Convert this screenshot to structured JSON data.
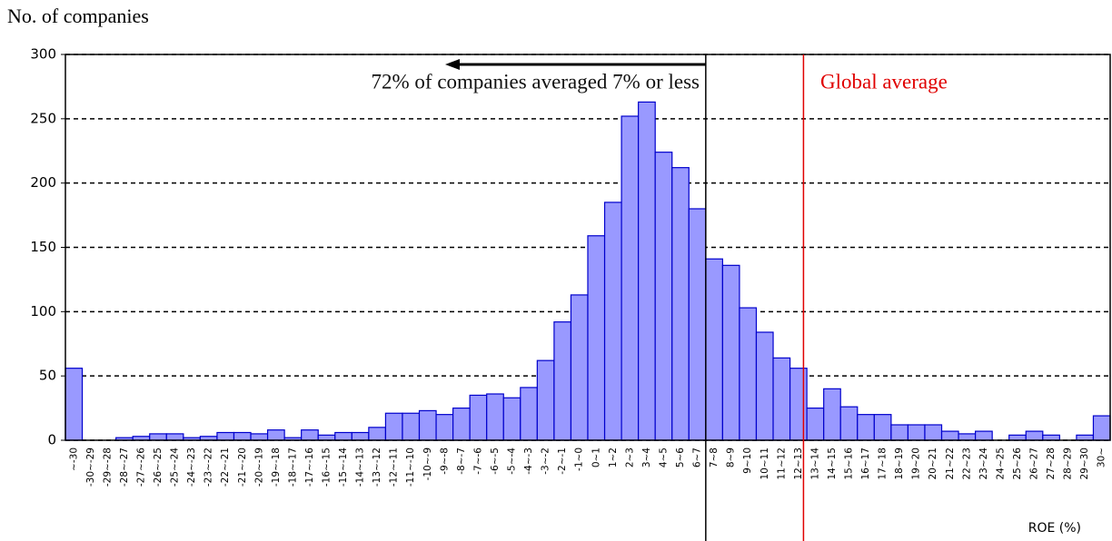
{
  "chart_data": {
    "type": "bar",
    "y_label": "No. of companies",
    "x_label": "ROE (%)",
    "annotations": [
      "72% of companies averaged 7% or less",
      "Global average"
    ],
    "categories": [
      "~-30",
      "-30~-29",
      "-29~-28",
      "-28~-27",
      "-27~-26",
      "-26~-25",
      "-25~-24",
      "-24~-23",
      "-23~-22",
      "-22~-21",
      "-21~-20",
      "-20~-19",
      "-19~-18",
      "-18~-17",
      "-17~-16",
      "-16~-15",
      "-15~-14",
      "-14~-13",
      "-13~-12",
      "-12~-11",
      "-11~-10",
      "-10~-9",
      "-9~-8",
      "-8~-7",
      "-7~-6",
      "-6~-5",
      "-5~-4",
      "-4~-3",
      "-3~-2",
      "-2~-1",
      "-1~0",
      "0~1",
      "1~2",
      "2~3",
      "3~4",
      "4~5",
      "5~6",
      "6~7",
      "7~8",
      "8~9",
      "9~10",
      "10~11",
      "11~12",
      "12~13",
      "13~14",
      "14~15",
      "15~16",
      "16~17",
      "17~18",
      "18~19",
      "19~20",
      "20~21",
      "21~22",
      "22~23",
      "23~24",
      "24~25",
      "25~26",
      "26~27",
      "27~28",
      "28~29",
      "29~30",
      "30~"
    ],
    "values": [
      56,
      0,
      0,
      2,
      3,
      5,
      5,
      2,
      3,
      6,
      6,
      5,
      8,
      2,
      8,
      4,
      6,
      6,
      10,
      21,
      21,
      23,
      20,
      25,
      35,
      36,
      33,
      41,
      62,
      92,
      113,
      159,
      185,
      252,
      263,
      224,
      212,
      180,
      141,
      136,
      103,
      84,
      64,
      56,
      25,
      40,
      26,
      20,
      20,
      12,
      12,
      12,
      7,
      5,
      7,
      0,
      4,
      7,
      4,
      0,
      4,
      19
    ],
    "color": "#9999ff",
    "edge_color": "#0000cc",
    "ylim": [
      0,
      300
    ],
    "yticks": [
      0,
      50,
      100,
      150,
      200,
      250,
      300
    ],
    "grid": true
  }
}
